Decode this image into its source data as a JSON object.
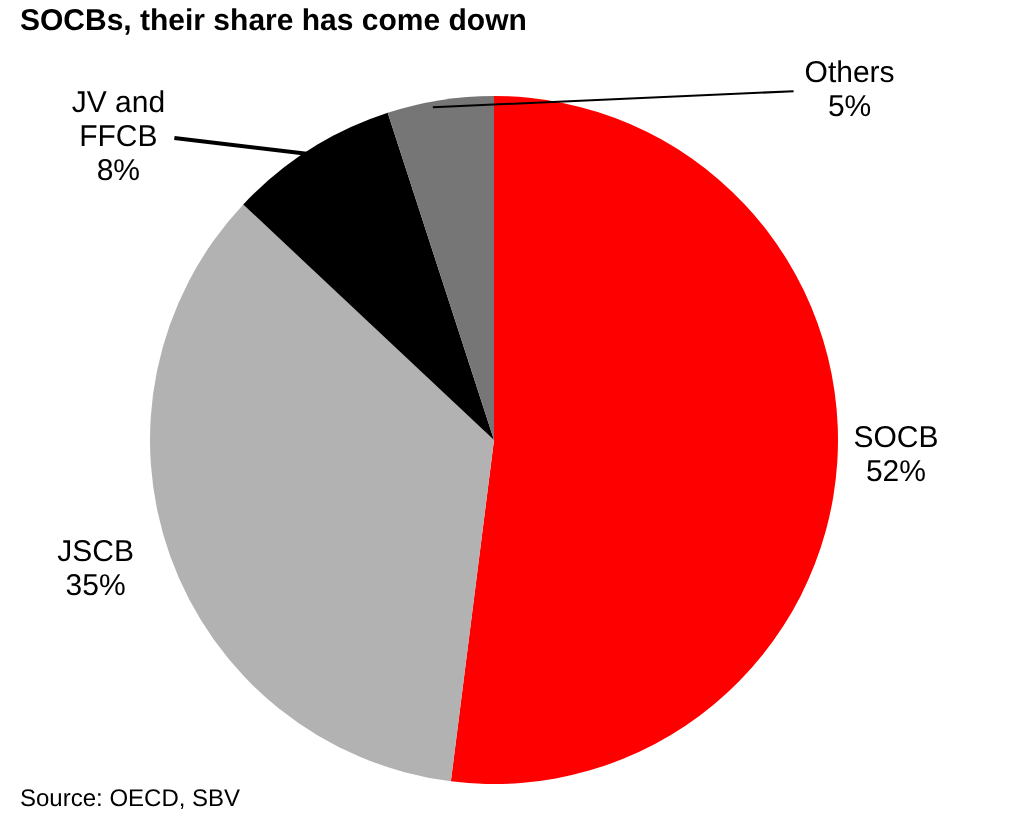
{
  "chart_data": {
    "type": "pie",
    "title": "SOCBs, their share has come down",
    "categories": [
      "SOCB",
      "JSCB",
      "JV and FFCB",
      "Others"
    ],
    "values": [
      52,
      35,
      8,
      5
    ],
    "colors": [
      "#ff0000",
      "#b2b2b2",
      "#000000",
      "#767676"
    ],
    "value_labels": [
      "52%",
      "35%",
      "8%",
      "5%"
    ],
    "annotations": [
      "Source: OECD, SBV"
    ]
  }
}
